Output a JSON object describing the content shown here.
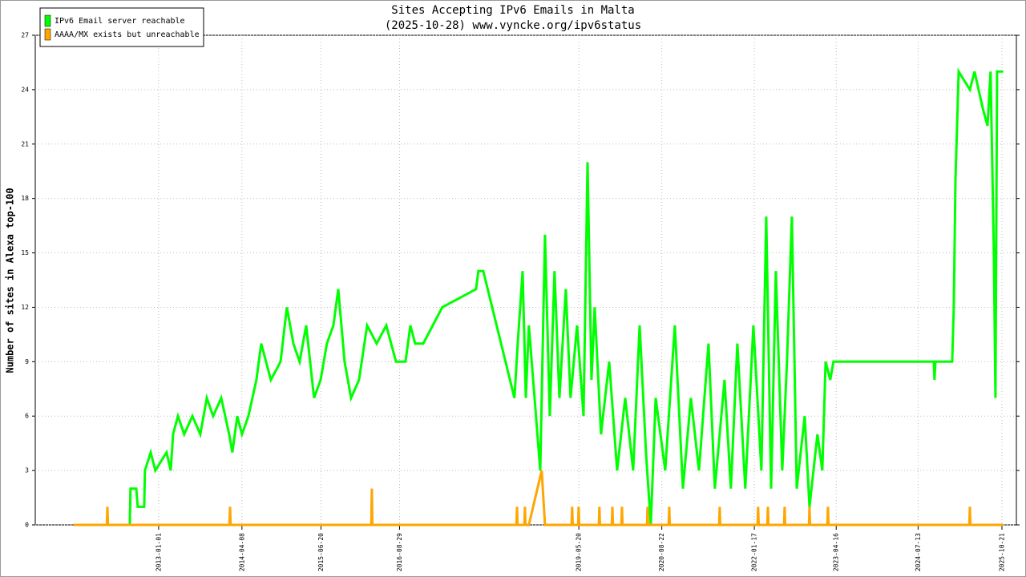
{
  "chart_data": {
    "type": "line",
    "title": "Sites Accepting IPv6 Emails in Malta",
    "subtitle": "(2025-10-28) www.vyncke.org/ipv6status",
    "y_label": "Number of sites in Alexa top-100",
    "xlim": [
      "2011-02-17",
      "2026-01-09"
    ],
    "xticks": [
      "2013-01-01",
      "2014-04-08",
      "2015-06-20",
      "2016-08-29",
      "2019-05-20",
      "2020-08-22",
      "2022-01-17",
      "2023-04-16",
      "2024-07-13",
      "2025-10-21"
    ],
    "ylim": [
      0,
      27
    ],
    "yticks": [
      0,
      3,
      6,
      9,
      12,
      15,
      18,
      21,
      24,
      27
    ],
    "grid": true,
    "legend": "upper left",
    "series": [
      {
        "name": "IPv6 Email server reachable",
        "color": "#00ff00",
        "x": [
          "2011-09-18",
          "2012-07-25",
          "2012-07-29",
          "2012-08-30",
          "2012-09-07",
          "2012-10-13",
          "2012-10-17",
          "2012-11-18",
          "2012-12-14",
          "2013-02-14",
          "2013-03-09",
          "2013-03-22",
          "2013-04-18",
          "2013-05-23",
          "2013-07-07",
          "2013-08-20",
          "2013-09-25",
          "2013-10-30",
          "2013-12-14",
          "2014-01-27",
          "2014-02-14",
          "2014-03-13",
          "2014-04-08",
          "2014-05-14",
          "2014-06-27",
          "2014-07-24",
          "2014-09-15",
          "2014-11-08",
          "2014-12-13",
          "2015-01-18",
          "2015-02-22",
          "2015-03-30",
          "2015-05-13",
          "2015-06-18",
          "2015-07-23",
          "2015-08-28",
          "2015-09-24",
          "2015-10-29",
          "2015-12-04",
          "2016-01-17",
          "2016-03-02",
          "2016-04-24",
          "2016-06-16",
          "2016-08-09",
          "2016-10-01",
          "2016-10-28",
          "2016-11-23",
          "2017-01-07",
          "2017-04-23",
          "2017-10-27",
          "2017-11-09",
          "2017-12-06",
          "2018-05-28",
          "2018-06-15",
          "2018-07-12",
          "2018-07-30",
          "2018-08-16",
          "2018-10-18",
          "2018-11-13",
          "2018-12-10",
          "2019-01-05",
          "2019-02-01",
          "2019-03-09",
          "2019-04-04",
          "2019-05-10",
          "2019-06-15",
          "2019-07-07",
          "2019-07-29",
          "2019-08-16",
          "2019-09-20",
          "2019-11-04",
          "2019-12-18",
          "2020-02-01",
          "2020-03-16",
          "2020-04-21",
          "2020-05-26",
          "2020-06-22",
          "2020-07-19",
          "2020-09-10",
          "2020-11-02",
          "2020-12-17",
          "2021-01-30",
          "2021-03-16",
          "2021-05-08",
          "2021-06-12",
          "2021-08-05",
          "2021-09-09",
          "2021-10-15",
          "2021-11-28",
          "2022-01-12",
          "2022-02-25",
          "2022-03-24",
          "2022-04-20",
          "2022-05-16",
          "2022-06-21",
          "2022-07-17",
          "2022-08-13",
          "2022-09-09",
          "2022-10-23",
          "2022-11-19",
          "2023-01-02",
          "2023-01-29",
          "2023-02-16",
          "2023-03-14",
          "2023-04-01",
          "2024-10-08",
          "2024-10-12",
          "2024-10-17",
          "2025-01-18",
          "2025-01-27",
          "2025-02-05",
          "2025-02-23",
          "2025-04-26",
          "2025-05-22",
          "2025-07-06",
          "2025-08-02",
          "2025-08-19",
          "2025-09-06",
          "2025-09-15",
          "2025-09-24",
          "2025-10-28"
        ],
        "values": [
          0,
          0,
          2,
          2,
          1,
          1,
          3,
          4,
          3,
          4,
          3,
          5,
          6,
          5,
          6,
          5,
          7,
          6,
          7,
          5,
          4,
          6,
          5,
          6,
          8,
          10,
          8,
          9,
          12,
          10,
          9,
          11,
          7,
          8,
          10,
          11,
          13,
          9,
          7,
          8,
          11,
          10,
          11,
          9,
          9,
          11,
          10,
          10,
          12,
          13,
          14,
          14,
          7,
          10,
          14,
          7,
          11,
          3,
          16,
          6,
          14,
          7,
          13,
          7,
          11,
          6,
          20,
          8,
          12,
          5,
          9,
          3,
          7,
          3,
          11,
          4,
          0,
          7,
          3,
          11,
          2,
          7,
          3,
          10,
          2,
          8,
          2,
          10,
          2,
          11,
          3,
          17,
          2,
          14,
          3,
          9,
          17,
          2,
          6,
          1,
          5,
          3,
          9,
          8,
          9,
          9,
          8,
          9,
          9,
          12,
          19,
          25,
          24,
          25,
          23,
          22,
          25,
          15,
          7,
          25,
          25
        ]
      },
      {
        "name": "AAAA/MX exists but unreachable",
        "color": "#ffa500",
        "x": [
          "2011-09-18",
          "2012-03-20",
          "2012-03-23",
          "2012-03-26",
          "2014-01-29",
          "2014-02-01",
          "2014-02-04",
          "2016-03-25",
          "2016-03-28",
          "2016-03-31",
          "2018-06-08",
          "2018-06-11",
          "2018-06-14",
          "2018-07-22",
          "2018-07-25",
          "2018-07-28",
          "2018-08-16",
          "2018-10-26",
          "2018-11-13",
          "2019-04-10",
          "2019-04-13",
          "2019-04-16",
          "2019-05-16",
          "2019-05-19",
          "2019-05-22",
          "2019-09-08",
          "2019-09-11",
          "2019-09-14",
          "2019-11-19",
          "2019-11-22",
          "2019-11-25",
          "2020-01-11",
          "2020-01-14",
          "2020-01-17",
          "2020-06-01",
          "2020-06-04",
          "2020-06-07",
          "2020-09-29",
          "2020-10-02",
          "2020-10-05",
          "2021-07-06",
          "2021-07-09",
          "2021-07-12",
          "2022-02-04",
          "2022-02-07",
          "2022-02-10",
          "2022-03-30",
          "2022-04-02",
          "2022-04-05",
          "2022-07-01",
          "2022-07-04",
          "2022-07-07",
          "2022-11-16",
          "2022-11-19",
          "2022-11-22",
          "2023-02-26",
          "2023-03-01",
          "2023-03-04",
          "2025-04-23",
          "2025-04-26",
          "2025-04-29",
          "2025-10-28"
        ],
        "values": [
          0,
          0,
          1,
          0,
          0,
          1,
          0,
          0,
          2,
          0,
          0,
          1,
          0,
          0,
          1,
          0,
          0,
          3,
          0,
          0,
          1,
          0,
          0,
          1,
          0,
          0,
          1,
          0,
          0,
          1,
          0,
          0,
          1,
          0,
          0,
          1,
          0,
          0,
          1,
          0,
          0,
          1,
          0,
          0,
          1,
          0,
          0,
          1,
          0,
          0,
          1,
          0,
          0,
          1,
          0,
          0,
          1,
          0,
          0,
          1,
          0,
          0
        ]
      }
    ]
  }
}
